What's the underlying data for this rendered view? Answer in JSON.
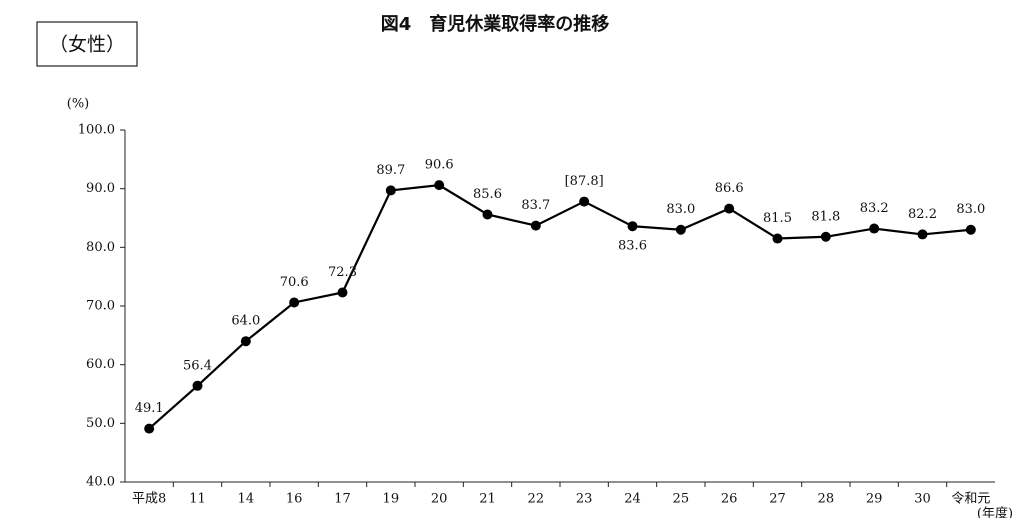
{
  "chart_data": {
    "type": "line",
    "title": "図4　育児休業取得率の推移",
    "label_box": "（女性）",
    "y_unit": "(%)",
    "x_label": "(年度)",
    "categories": [
      "平成8",
      "11",
      "14",
      "16",
      "17",
      "19",
      "20",
      "21",
      "22",
      "23",
      "24",
      "25",
      "26",
      "27",
      "28",
      "29",
      "30",
      "令和元"
    ],
    "series": [
      {
        "color": "#000000",
        "values": [
          49.1,
          56.4,
          64.0,
          70.6,
          72.3,
          89.7,
          90.6,
          85.6,
          83.7,
          87.8,
          83.6,
          83.0,
          86.6,
          81.5,
          81.8,
          83.2,
          82.2,
          83.0
        ],
        "value_labels": [
          "49.1",
          "56.4",
          "64.0",
          "70.6",
          "72.3",
          "89.7",
          "90.6",
          "85.6",
          "83.7",
          "[87.8]",
          "83.6",
          "83.0",
          "86.6",
          "81.5",
          "81.8",
          "83.2",
          "82.2",
          "83.0"
        ]
      }
    ],
    "ylim": [
      40,
      100
    ],
    "yticks": [
      {
        "value": 40,
        "label": "40.0"
      },
      {
        "value": 50,
        "label": "50.0"
      },
      {
        "value": 60,
        "label": "60.0"
      },
      {
        "value": 70,
        "label": "70.0"
      },
      {
        "value": 80,
        "label": "80.0"
      },
      {
        "value": 90,
        "label": "90.0"
      },
      {
        "value": 100,
        "label": "100.0"
      }
    ],
    "grid": false
  }
}
